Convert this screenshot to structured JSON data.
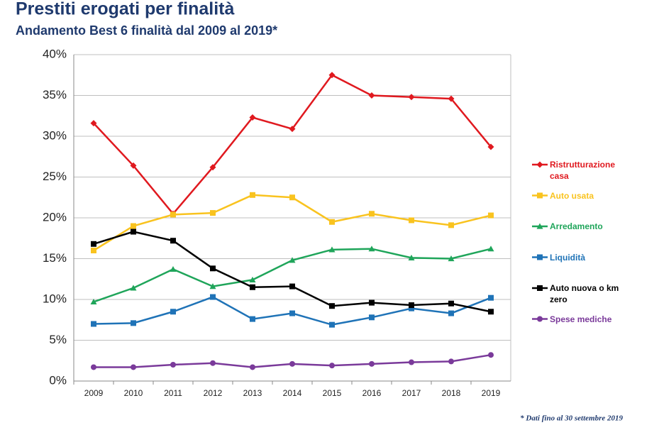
{
  "chart_data": {
    "type": "line",
    "title": "Prestiti erogati per finalità",
    "subtitle": "Andamento Best 6 finalità dal 2009 al 2019*",
    "footnote": "* Dati fino al 30 settembre 2019",
    "categories": [
      "2009",
      "2010",
      "2011",
      "2012",
      "2013",
      "2014",
      "2015",
      "2016",
      "2017",
      "2018",
      "2019"
    ],
    "ylim": [
      0,
      40
    ],
    "yticks": [
      {
        "value": 0,
        "label": "0%"
      },
      {
        "value": 5,
        "label": "5%"
      },
      {
        "value": 10,
        "label": "10%"
      },
      {
        "value": 15,
        "label": "15%"
      },
      {
        "value": 20,
        "label": "20%"
      },
      {
        "value": 25,
        "label": "25%"
      },
      {
        "value": 30,
        "label": "30%"
      },
      {
        "value": 35,
        "label": "35%"
      },
      {
        "value": 40,
        "label": "40%"
      }
    ],
    "grid": true,
    "legend": "right",
    "series": [
      {
        "name": "Ristrutturazione casa",
        "color": "#e0191f",
        "marker": "diamond",
        "values": [
          31.6,
          26.4,
          20.5,
          26.2,
          32.3,
          30.9,
          37.5,
          35.0,
          34.8,
          34.6,
          28.7
        ]
      },
      {
        "name": "Auto usata",
        "color": "#f9c31f",
        "marker": "square",
        "values": [
          16.0,
          19.0,
          20.4,
          20.6,
          22.8,
          22.5,
          19.5,
          20.5,
          19.7,
          19.1,
          20.3
        ]
      },
      {
        "name": "Arredamento",
        "color": "#1fa55a",
        "marker": "triangle",
        "values": [
          9.7,
          11.4,
          13.7,
          11.6,
          12.4,
          14.8,
          16.1,
          16.2,
          15.1,
          15.0,
          16.2
        ]
      },
      {
        "name": "Liquidità",
        "color": "#1f73b7",
        "marker": "square",
        "values": [
          7.0,
          7.1,
          8.5,
          10.3,
          7.6,
          8.3,
          6.9,
          7.8,
          8.9,
          8.3,
          10.2
        ]
      },
      {
        "name": "Auto nuova o km zero",
        "color": "#000000",
        "marker": "square",
        "values": [
          16.8,
          18.3,
          17.2,
          13.8,
          11.5,
          11.6,
          9.2,
          9.6,
          9.3,
          9.5,
          8.5
        ]
      },
      {
        "name": "Spese mediche",
        "color": "#7a3a9a",
        "marker": "circle",
        "values": [
          1.7,
          1.7,
          2.0,
          2.2,
          1.7,
          2.1,
          1.9,
          2.1,
          2.3,
          2.4,
          3.2
        ]
      }
    ]
  }
}
